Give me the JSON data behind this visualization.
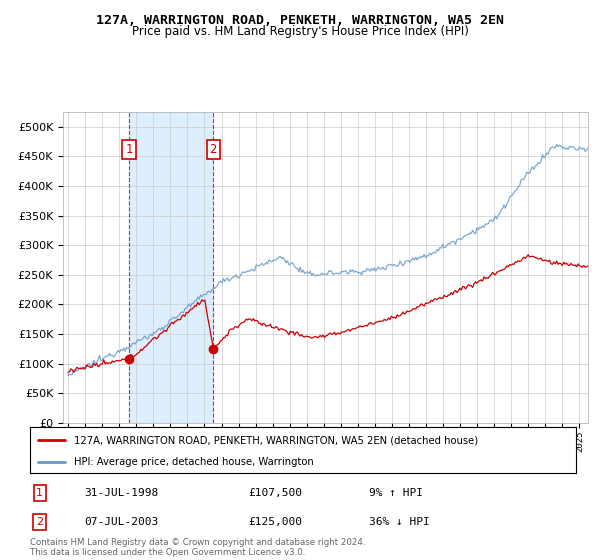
{
  "title": "127A, WARRINGTON ROAD, PENKETH, WARRINGTON, WA5 2EN",
  "subtitle": "Price paid vs. HM Land Registry's House Price Index (HPI)",
  "sale1_price": 107500,
  "sale1_hpi_pct": "9% ↑ HPI",
  "sale1_date_str": "31-JUL-1998",
  "sale2_price": 125000,
  "sale2_hpi_pct": "36% ↓ HPI",
  "sale2_date_str": "07-JUL-2003",
  "legend_line1": "127A, WARRINGTON ROAD, PENKETH, WARRINGTON, WA5 2EN (detached house)",
  "legend_line2": "HPI: Average price, detached house, Warrington",
  "footer": "Contains HM Land Registry data © Crown copyright and database right 2024.\nThis data is licensed under the Open Government Licence v3.0.",
  "red_color": "#cc0000",
  "blue_color": "#6699cc",
  "shading_color": "#ddeeff",
  "yticks": [
    0,
    50000,
    100000,
    150000,
    200000,
    250000,
    300000,
    350000,
    400000,
    450000,
    500000
  ],
  "ylim": [
    0,
    525000
  ],
  "xlim_start": 1994.7,
  "xlim_end": 2025.5,
  "sale1_x": 1998.58,
  "sale2_x": 2003.52
}
